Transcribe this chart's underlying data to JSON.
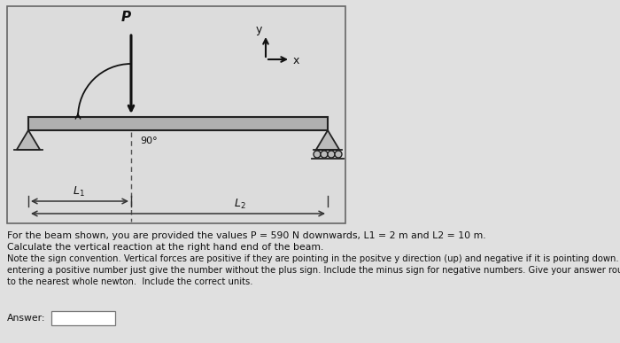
{
  "bg_color": "#e0e0e0",
  "diagram_bg": "#dcdcdc",
  "diagram_border": "#666666",
  "beam_color": "#b0b0b0",
  "beam_edge": "#222222",
  "support_face": "#bbbbbb",
  "support_edge": "#222222",
  "arrow_color": "#111111",
  "text_color": "#111111",
  "P_label": "P",
  "L1_label": "L$_1$",
  "L2_label": "L$_2$",
  "angle_label": "90°",
  "coord_y_label": "y",
  "coord_x_label": "x",
  "text1": "For the beam shown, you are provided the values P = 590 N downwards, L1 = 2 m and L2 = 10 m.",
  "text2": "Calculate the vertical reaction at the right hand end of the beam.",
  "text3": "Note the sign convention. Vertical forces are positive if they are pointing in the positve y direction (up) and negative if it is pointing down. When\nentering a positive number just give the number without the plus sign. Include the minus sign for negative numbers. Give your answer rounded\nto the nearest whole newton.  Include the correct units.",
  "answer_label": "Answer:",
  "font_size_text": 7.8,
  "font_size_small_text": 7.2,
  "font_size_P": 11,
  "font_size_L": 9,
  "font_size_angle": 8,
  "font_size_coord": 9
}
